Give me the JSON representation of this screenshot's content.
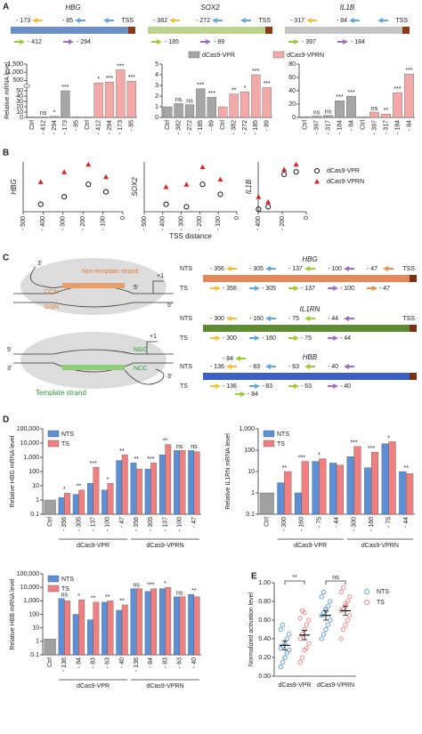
{
  "panels": [
    "A",
    "B",
    "C",
    "D",
    "E"
  ],
  "maps_A": [
    {
      "gene": "HBG",
      "above": [
        "- 173",
        "- 85"
      ],
      "tss": "TSS",
      "below": [
        "- 412",
        "- 294"
      ],
      "color": "#6d8fc7"
    },
    {
      "gene": "SOX2",
      "above": [
        "- 382",
        "- 272"
      ],
      "tss": "TSS",
      "below": [
        "- 185",
        "- 89"
      ],
      "color": "#bcd48f"
    },
    {
      "gene": "IL1B",
      "above": [
        "- 317",
        "- 84"
      ],
      "tss": "TSS",
      "below": [
        "- 397",
        "- 184"
      ],
      "color": "#c4c4c4"
    }
  ],
  "diagram_C": {
    "top": [
      "3'",
      "Non-template strand",
      "CCN",
      "GGN",
      "5'",
      "+1",
      "5'"
    ],
    "bottom": [
      "5'",
      "3'",
      "+1",
      "NGG",
      "NCC",
      "Template strand",
      "3'"
    ]
  },
  "maps_C": [
    {
      "gene": "HBG",
      "color": "#e8875a",
      "rows": [
        {
          "strand": "NTS",
          "labels": [
            "- 356",
            "- 305",
            "- 137",
            "- 100",
            "- 47"
          ],
          "tss": "TSS"
        },
        {
          "strand": "TS",
          "labels": [
            "- 356",
            "- 305",
            "- 137",
            "- 100",
            "- 47"
          ]
        }
      ]
    },
    {
      "gene": "IL1RN",
      "color": "#5e8c31",
      "rows": [
        {
          "strand": "NTS",
          "labels": [
            "- 300",
            "- 160",
            "- 75",
            "- 44"
          ],
          "tss": "TSS"
        },
        {
          "strand": "TS",
          "labels": [
            "- 300",
            "- 160",
            "- 75",
            "- 44"
          ]
        }
      ]
    },
    {
      "gene": "HBB",
      "color": "#3b60c4",
      "rows": [
        {
          "strand": "NTS",
          "labels": [
            "- 136",
            "- 83",
            "- 63",
            "- 40"
          ],
          "extra": "- 84"
        },
        {
          "strand": "TS",
          "labels": [
            "- 136",
            "- 83",
            "- 63",
            "- 40"
          ],
          "extra": "- 84"
        }
      ]
    }
  ],
  "chart_data": [
    {
      "type": "bar",
      "ylabel": "Relative mRNA level",
      "categories": [
        "Ctrl",
        "- 412",
        "- 294",
        "- 173",
        "- 85",
        "Ctrl",
        "- 412",
        "- 294",
        "- 173",
        "- 85"
      ],
      "series": [
        {
          "color": "#a6a6a6",
          "values": [
            1,
            1,
            2,
            50,
            1,
            null,
            null,
            null,
            null,
            null
          ]
        },
        {
          "color": "#f4a9a9",
          "values": [
            null,
            null,
            null,
            null,
            null,
            1,
            350,
            400,
            1150,
            450
          ]
        }
      ],
      "sig": [
        null,
        "ns",
        "*",
        "***",
        null,
        null,
        "*",
        "***",
        "***",
        "***"
      ],
      "ylim": [
        0,
        1500
      ],
      "ybreak": [
        55,
        300
      ],
      "yticks": [
        0,
        10,
        20,
        30,
        40,
        50,
        500,
        {
          "value": 1000,
          "label": "1,000"
        },
        {
          "value": 1500,
          "label": "1,500"
        }
      ]
    },
    {
      "type": "bar",
      "categories": [
        "Ctrl",
        "- 382",
        "- 272",
        "- 185",
        "- 89",
        "Ctrl",
        "- 382",
        "- 272",
        "- 185",
        "- 89"
      ],
      "series": [
        {
          "name": "dCas9-VPR",
          "color": "#a6a6a6",
          "values": [
            1,
            1.3,
            1.2,
            2.7,
            1.9,
            null,
            null,
            null,
            null,
            null
          ]
        },
        {
          "name": "dCas9-VPRN",
          "color": "#f4a9a9",
          "values": [
            null,
            null,
            null,
            null,
            null,
            1,
            2.2,
            2.4,
            4.0,
            2.8
          ]
        }
      ],
      "sig": [
        null,
        "ns",
        "ns",
        "***",
        "***",
        null,
        "**",
        "*",
        "***",
        "***"
      ],
      "ylim": [
        0,
        5
      ],
      "yticks": [
        0,
        1,
        2,
        3,
        4,
        5
      ],
      "legend": "top"
    },
    {
      "type": "bar",
      "categories": [
        "Ctrl",
        "- 397",
        "- 317",
        "- 184",
        "- 84",
        "Ctrl",
        "- 397",
        "- 317",
        "- 184",
        "- 84"
      ],
      "series": [
        {
          "color": "#a6a6a6",
          "values": [
            1,
            2,
            3,
            25,
            32,
            null,
            null,
            null,
            null,
            null
          ]
        },
        {
          "color": "#f4a9a9",
          "values": [
            null,
            null,
            null,
            null,
            null,
            1,
            8,
            5,
            37,
            65
          ]
        }
      ],
      "sig": [
        null,
        "ns",
        "ns",
        "***",
        "***",
        null,
        "ns",
        "**",
        "***",
        "***"
      ],
      "ylim": [
        0,
        80
      ],
      "yticks": [
        0,
        20,
        40,
        60,
        80
      ]
    },
    {
      "type": "scatter",
      "ylabel": "HBG",
      "xlim": [
        -500,
        0
      ],
      "xticks": [
        {
          "value": -500,
          "label": "- 500"
        },
        {
          "value": -400,
          "label": "- 400"
        },
        {
          "value": -300,
          "label": "- 300"
        },
        {
          "value": -200,
          "label": "- 200"
        },
        {
          "value": -100,
          "label": "- 100"
        },
        0
      ],
      "ylim": [
        0,
        1
      ],
      "series": [
        {
          "marker": "circle-open",
          "color": "#000000",
          "x": [
            -412,
            -294,
            -173,
            -85
          ],
          "values": [
            0.15,
            0.3,
            0.55,
            0.4
          ]
        },
        {
          "marker": "triangle",
          "color": "#d62728",
          "x": [
            -412,
            -294,
            -173,
            -85
          ],
          "values": [
            0.6,
            0.8,
            0.95,
            0.7
          ]
        }
      ]
    },
    {
      "type": "scatter",
      "ylabel": "SOX2",
      "xlabel": "TSS distance",
      "xlim": [
        -500,
        0
      ],
      "xticks": [
        {
          "value": -500,
          "label": "- 500"
        },
        {
          "value": -400,
          "label": "- 400"
        },
        {
          "value": -300,
          "label": "- 300"
        },
        {
          "value": -200,
          "label": "- 200"
        },
        {
          "value": -100,
          "label": "- 100"
        },
        0
      ],
      "ylim": [
        0,
        1
      ],
      "series": [
        {
          "marker": "circle-open",
          "color": "#000000",
          "x": [
            -382,
            -272,
            -185,
            -89
          ],
          "values": [
            0.15,
            0.1,
            0.55,
            0.35
          ]
        },
        {
          "marker": "triangle",
          "color": "#d62728",
          "x": [
            -382,
            -272,
            -185,
            -89
          ],
          "values": [
            0.5,
            0.55,
            0.9,
            0.65
          ]
        }
      ]
    },
    {
      "type": "scatter",
      "ylabel": "IL1B",
      "xlim": [
        -400,
        0
      ],
      "xticks": [
        {
          "value": -400,
          "label": "- 400"
        },
        {
          "value": -200,
          "label": "- 200"
        },
        0
      ],
      "ylim": [
        0,
        1
      ],
      "legend": "right",
      "series": [
        {
          "name": "dCas9-VPR",
          "marker": "circle-open",
          "color": "#000000",
          "x": [
            -397,
            -317,
            -184,
            -84
          ],
          "values": [
            0.05,
            0.1,
            0.75,
            0.8
          ]
        },
        {
          "name": "dCas9-VPRN",
          "marker": "triangle",
          "color": "#d62728",
          "x": [
            -397,
            -317,
            -184,
            -84
          ],
          "values": [
            0.3,
            0.2,
            0.85,
            0.95
          ]
        }
      ]
    },
    {
      "type": "bar",
      "log": true,
      "ylabel": "Relative HBG mRNA level",
      "ctrl_color": "#a0a0a0",
      "legend": "upper left",
      "groups": [
        "dCas9-VPR",
        "dCas9-VPRN"
      ],
      "categories": [
        "Ctrl",
        "- 356",
        "- 305",
        "- 137",
        "- 100",
        "- 47",
        "- 356",
        "- 305",
        "- 137",
        "- 100",
        "- 47"
      ],
      "series": [
        {
          "name": "NTS",
          "color": "#5b8fd6",
          "values": [
            1,
            1.5,
            2.5,
            15,
            5,
            600,
            400,
            150,
            1500,
            3000,
            3000
          ]
        },
        {
          "name": "TS",
          "color": "#f08080",
          "values": [
            null,
            3,
            5,
            200,
            15,
            1500,
            150,
            400,
            8000,
            3000,
            2500
          ]
        }
      ],
      "sig": [
        null,
        "*",
        "**",
        "***",
        "*",
        "**",
        "**",
        "***",
        "**",
        "ns",
        "ns"
      ],
      "ylim": [
        0.1,
        100000
      ],
      "yticks": [
        0.1,
        1,
        10,
        100,
        {
          "value": 1000,
          "label": "1,000"
        },
        {
          "value": 10000,
          "label": "10,000"
        },
        {
          "value": 100000,
          "label": "100,000"
        }
      ]
    },
    {
      "type": "bar",
      "log": true,
      "ylabel": "Relative IL1RN mRNA level",
      "ctrl_color": "#a0a0a0",
      "legend": "upper left",
      "groups": [
        "dCas9-VPR",
        "dCas9-VPRN"
      ],
      "categories": [
        "Ctrl",
        "- 300",
        "- 160",
        "- 75",
        "- 44",
        "- 300",
        "- 160",
        "- 75",
        "- 44"
      ],
      "series": [
        {
          "name": "NTS",
          "color": "#5b8fd6",
          "values": [
            1,
            3,
            1,
            30,
            25,
            50,
            15,
            200,
            10
          ]
        },
        {
          "name": "TS",
          "color": "#f08080",
          "values": [
            null,
            10,
            30,
            40,
            20,
            150,
            80,
            250,
            8
          ]
        }
      ],
      "sig": [
        null,
        "**",
        "***",
        "*",
        null,
        "***",
        "***",
        "*",
        "**"
      ],
      "ylim": [
        0.1,
        1000
      ],
      "yticks": [
        0.1,
        1,
        10,
        100,
        {
          "value": 1000,
          "label": "1,000"
        }
      ]
    },
    {
      "type": "bar",
      "log": true,
      "ylabel": "Relative HBB mRNA level",
      "ctrl_color": "#a0a0a0",
      "legend": "upper left",
      "groups": [
        "dCas9-VPR",
        "dCas9-VPRN"
      ],
      "categories": [
        "Ctrl",
        "- 136",
        "- 84",
        "- 83",
        "- 63",
        "- 40",
        "- 136",
        "- 84",
        "- 83",
        "- 63",
        "- 40"
      ],
      "series": [
        {
          "name": "NTS",
          "color": "#5b8fd6",
          "values": [
            1.5,
            1500,
            100,
            40,
            800,
            200,
            8000,
            5000,
            8000,
            2000,
            3000
          ]
        },
        {
          "name": "TS",
          "color": "#f08080",
          "values": [
            null,
            1000,
            1200,
            800,
            1000,
            500,
            8000,
            8000,
            10000,
            2000,
            2000
          ]
        }
      ],
      "sig": [
        null,
        "ns",
        "*",
        "**",
        "**",
        "**",
        "ns",
        "***",
        "*",
        "ns",
        "**"
      ],
      "ylim": [
        0.1,
        100000
      ],
      "yticks": [
        0.1,
        1,
        10,
        100,
        {
          "value": 1000,
          "label": "1,000"
        },
        {
          "value": 10000,
          "label": "10,000"
        },
        {
          "value": 100000,
          "label": "100,000"
        }
      ]
    },
    {
      "type": "dot",
      "ylabel": "Normalized activation level",
      "legend": "right",
      "categories": [
        "dCas9-VPR",
        "dCas9-VPRN"
      ],
      "series": [
        {
          "name": "NTS",
          "color": "#5b9bd5",
          "values": [
            0.33,
            0.65
          ],
          "errors": [
            0.05,
            0.05
          ],
          "points": [
            [
              0.1,
              0.15,
              0.2,
              0.25,
              0.28,
              0.3,
              0.32,
              0.35,
              0.4,
              0.45,
              0.5,
              0.55,
              0.2
            ],
            [
              0.4,
              0.45,
              0.5,
              0.55,
              0.6,
              0.65,
              0.68,
              0.7,
              0.75,
              0.8,
              0.85,
              0.9,
              0.72
            ]
          ]
        },
        {
          "name": "TS",
          "color": "#f08080",
          "values": [
            0.44,
            0.7
          ],
          "errors": [
            0.05,
            0.05
          ],
          "points": [
            [
              0.15,
              0.2,
              0.28,
              0.3,
              0.35,
              0.4,
              0.45,
              0.5,
              0.55,
              0.6,
              0.62,
              0.7,
              0.68
            ],
            [
              0.4,
              0.5,
              0.55,
              0.6,
              0.65,
              0.7,
              0.72,
              0.75,
              0.8,
              0.85,
              0.9,
              0.95,
              0.78
            ]
          ]
        }
      ],
      "sig": [
        "**",
        "ns"
      ],
      "ylim": [
        0,
        1
      ],
      "yticks": [
        {
          "value": 0,
          "label": "0.00"
        },
        {
          "value": 0.2,
          "label": "0.20"
        },
        {
          "value": 0.4,
          "label": "0.40"
        },
        {
          "value": 0.6,
          "label": "0.60"
        },
        {
          "value": 0.8,
          "label": "0.80"
        },
        {
          "value": 1,
          "label": "1.00"
        }
      ]
    }
  ]
}
